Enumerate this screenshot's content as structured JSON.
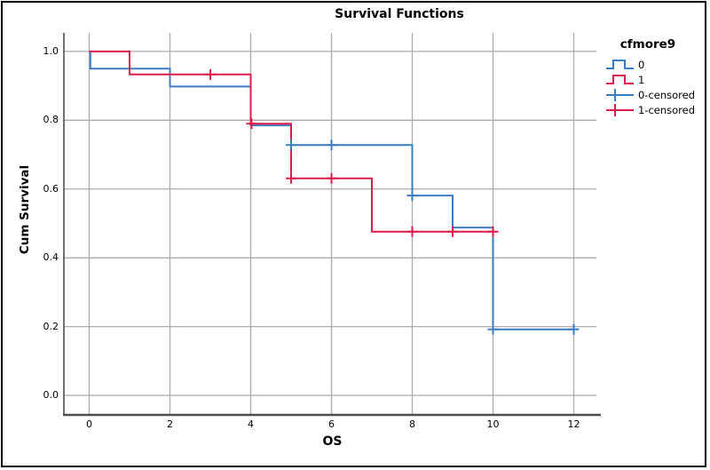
{
  "chart_data": {
    "type": "line",
    "subtype": "kaplan-meier-step-plot",
    "title": "Survival Functions",
    "xlabel": "OS",
    "ylabel": "Cum Survival",
    "legend_title": "cfmore9",
    "grid": true,
    "legend_position": "right",
    "xlim": [
      -0.626,
      12.67
    ],
    "ylim": [
      -0.0568,
      1.054
    ],
    "xticks": [
      {
        "v": 0,
        "label": "0"
      },
      {
        "v": 2,
        "label": "2"
      },
      {
        "v": 4,
        "label": "4"
      },
      {
        "v": 6,
        "label": "6"
      },
      {
        "v": 8,
        "label": "8"
      },
      {
        "v": 10,
        "label": "10"
      },
      {
        "v": 12,
        "label": "12"
      }
    ],
    "yticks": [
      {
        "v": 0.0,
        "label": "0.0"
      },
      {
        "v": 0.2,
        "label": "0.2"
      },
      {
        "v": 0.4,
        "label": "0.4"
      },
      {
        "v": 0.6,
        "label": "0.6"
      },
      {
        "v": 0.8,
        "label": "0.8"
      },
      {
        "v": 1.0,
        "label": "1.0"
      }
    ],
    "series": [
      {
        "name": "0",
        "color": "#3C7DC1",
        "step_points": [
          [
            0,
            1.0
          ],
          [
            0.03,
            1.0
          ],
          [
            0.03,
            0.95
          ],
          [
            2,
            0.95
          ],
          [
            2,
            0.898
          ],
          [
            4,
            0.898
          ],
          [
            4,
            0.785
          ],
          [
            5,
            0.785
          ],
          [
            5,
            0.728
          ],
          [
            8,
            0.728
          ],
          [
            8,
            0.581
          ],
          [
            9,
            0.581
          ],
          [
            9,
            0.488
          ],
          [
            10,
            0.488
          ],
          [
            10,
            0.192
          ],
          [
            12,
            0.192
          ]
        ]
      },
      {
        "name": "1",
        "color": "#DC1C4B",
        "step_points": [
          [
            0,
            1.0
          ],
          [
            1,
            1.0
          ],
          [
            1,
            0.933
          ],
          [
            4,
            0.933
          ],
          [
            4,
            0.79
          ],
          [
            5,
            0.79
          ],
          [
            5,
            0.631
          ],
          [
            7,
            0.631
          ],
          [
            7,
            0.476
          ],
          [
            10,
            0.476
          ]
        ]
      }
    ],
    "censored": [
      {
        "series": "0",
        "color": "#3C7DC1",
        "points": [
          [
            5,
            0.728
          ],
          [
            6,
            0.728
          ],
          [
            8,
            0.581
          ],
          [
            10,
            0.192
          ],
          [
            12,
            0.192
          ]
        ]
      },
      {
        "series": "1",
        "color": "#DC1C4B",
        "points": [
          [
            3,
            0.933
          ],
          [
            4.02,
            0.79
          ],
          [
            5,
            0.631
          ],
          [
            6,
            0.631
          ],
          [
            8,
            0.476
          ],
          [
            9,
            0.476
          ],
          [
            10,
            0.476
          ]
        ]
      }
    ]
  },
  "legend": {
    "title": "cfmore9",
    "items": [
      {
        "label": "0",
        "type": "step",
        "color": "#3C7DC1"
      },
      {
        "label": "1",
        "type": "step",
        "color": "#DC1C4B"
      },
      {
        "label": "0-censored",
        "type": "censored",
        "color": "#3C7DC1"
      },
      {
        "label": "1-censored",
        "type": "censored",
        "color": "#DC1C4B"
      }
    ]
  },
  "colors": {
    "grid": "#ababab",
    "axis": "#4d4d4d",
    "frame_border": "#000000",
    "background": "#ffffff",
    "series_0": "#3C7DC1",
    "series_1": "#DC1C4B"
  }
}
